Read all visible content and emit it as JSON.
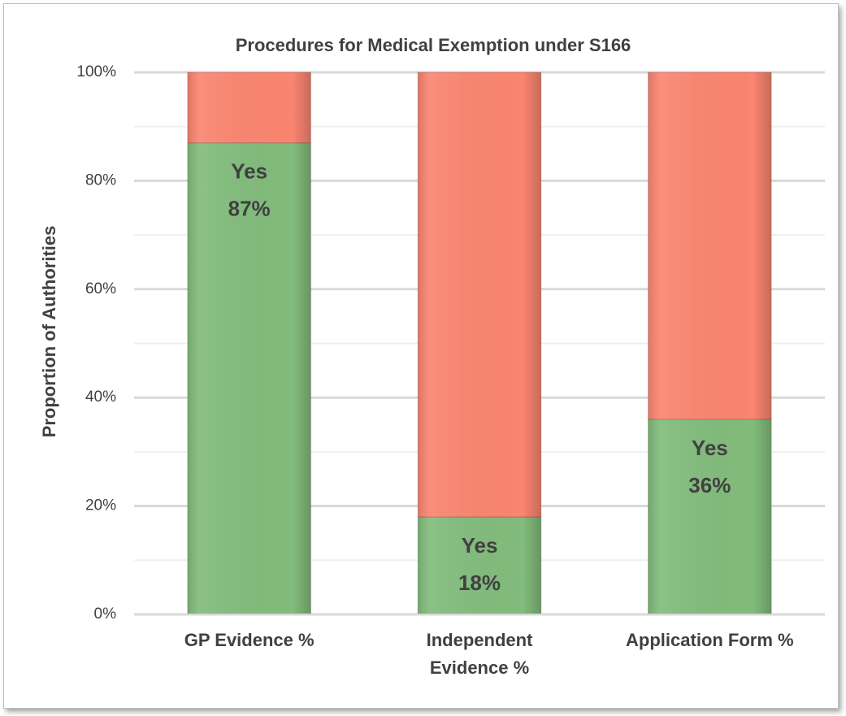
{
  "chart_data": {
    "type": "stacked_bar",
    "title": "Procedures for Medical Exemption under S166",
    "ylabel": "Proportion of Authorities",
    "categories": [
      "GP Evidence %",
      "Independent Evidence %",
      "Application Form %"
    ],
    "series": [
      {
        "name": "Yes",
        "color": "#82bc7c",
        "values": [
          87,
          18,
          36
        ],
        "value_labels": [
          "87%",
          "18%",
          "36%"
        ]
      },
      {
        "color": "#fa8570",
        "values": [
          13,
          82,
          64
        ]
      }
    ],
    "ylim": [
      0,
      100
    ],
    "yticks": [
      {
        "value": 0,
        "label": "0%"
      },
      {
        "value": 20,
        "label": "20%"
      },
      {
        "value": 40,
        "label": "40%"
      },
      {
        "value": 60,
        "label": "60%"
      },
      {
        "value": 80,
        "label": "80%"
      },
      {
        "value": 100,
        "label": "100%"
      }
    ],
    "minor_yticks": [
      10,
      30,
      50,
      70,
      90
    ],
    "grid": true
  }
}
